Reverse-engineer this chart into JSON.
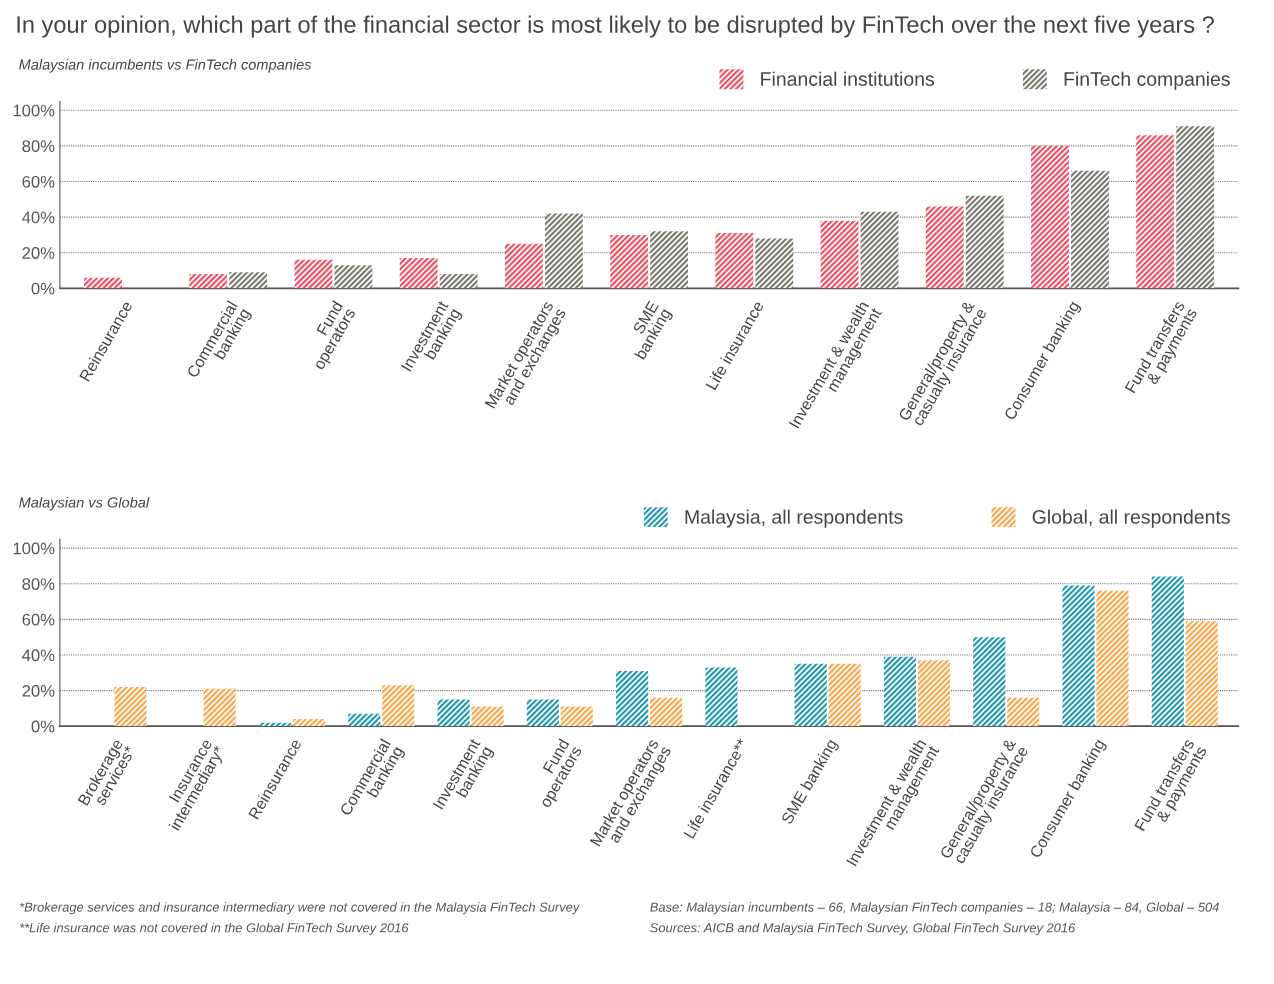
{
  "chart_data": [
    {
      "type": "bar",
      "title": "In your opinion, which part of the financial sector is most likely to be disrupted by FinTech over the next five years ?",
      "subtitle": "Malaysian incumbents vs FinTech companies",
      "categories": [
        "Reinsurance",
        "Commercial\nbanking",
        "Fund\noperators",
        "Investment\nbanking",
        "Market operators\nand exchanges",
        "SME\nbanking",
        "Life insurance",
        "Investment & wealth\nmanagement",
        "General/property &\ncasualty insurance",
        "Consumer banking",
        "Fund transfers\n& payments"
      ],
      "series": [
        {
          "name": "Financial institutions",
          "color": "#f0566a",
          "values": [
            6,
            8,
            16,
            17,
            25,
            30,
            31,
            38,
            46,
            80,
            86
          ]
        },
        {
          "name": "FinTech companies",
          "color": "#7f7f76",
          "values": [
            null,
            9,
            13,
            8,
            42,
            32,
            28,
            43,
            52,
            66,
            91
          ]
        }
      ],
      "ylim": [
        0,
        105
      ],
      "yticks": [
        {
          "value": 0,
          "label": "0%"
        },
        {
          "value": 20,
          "label": "20%"
        },
        {
          "value": 40,
          "label": "40%"
        },
        {
          "value": 60,
          "label": "60%"
        },
        {
          "value": 80,
          "label": "80%"
        },
        {
          "value": 100,
          "label": "100%"
        }
      ],
      "grid": "y",
      "legend": "top right"
    },
    {
      "type": "bar",
      "subtitle": "Malaysian vs Global",
      "categories": [
        "Brokerage\nservices*",
        "Insurance\nintermediary*",
        "Reinsurance",
        "Commercial\nbanking",
        "Investment\nbanking",
        "Fund\noperators",
        "Market operators\nand exchanges",
        "Life insurance**",
        "SME banking",
        "Investment & wealth\nmanagement",
        "General/property &\ncasualty insurance",
        "Consumer banking",
        "Fund transfers\n& payments"
      ],
      "series": [
        {
          "name": "Malaysia, all respondents",
          "color": "#2a9db5",
          "values": [
            null,
            null,
            2,
            7,
            15,
            15,
            31,
            33,
            35,
            39,
            50,
            79,
            84
          ]
        },
        {
          "name": "Global, all respondents",
          "color": "#fba94f",
          "values": [
            22,
            21,
            4,
            23,
            11,
            11,
            16,
            null,
            35,
            37,
            16,
            76,
            59
          ]
        }
      ],
      "ylim": [
        0,
        105
      ],
      "yticks": [
        {
          "value": 0,
          "label": "0%"
        },
        {
          "value": 20,
          "label": "20%"
        },
        {
          "value": 40,
          "label": "40%"
        },
        {
          "value": 60,
          "label": "60%"
        },
        {
          "value": 80,
          "label": "80%"
        },
        {
          "value": 100,
          "label": "100%"
        }
      ],
      "grid": "y",
      "legend": "top right",
      "annotations": [
        "*Brokerage services and insurance intermediary were not covered in the Malaysia FinTech Survey",
        "**Life insurance was not covered in the Global FinTech Survey 2016",
        "Base: Malaysian incumbents – 66, Malaysian FinTech companies – 18; Malaysia – 84, Global – 504",
        "Sources: AICB and Malaysia FinTech Survey, Global FinTech Survey 2016"
      ]
    }
  ]
}
